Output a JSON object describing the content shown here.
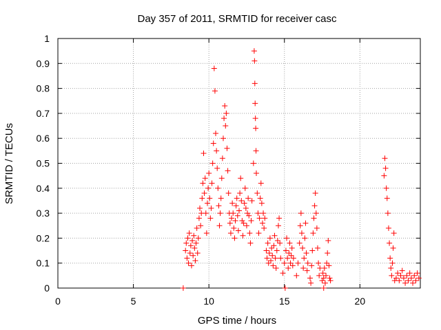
{
  "chart_data": {
    "type": "scatter",
    "title": "Day 357 of 2011, SRMTID for receiver casc",
    "xlabel": "GPS time / hours",
    "ylabel": "SRMTID / TECUs",
    "xlim": [
      0,
      24
    ],
    "ylim": [
      0,
      1
    ],
    "xticks": [
      0,
      5,
      10,
      15,
      20
    ],
    "xtick_labels": [
      "0",
      "5",
      "10",
      "15",
      "20"
    ],
    "yticks": [
      0,
      0.1,
      0.2,
      0.3,
      0.4,
      0.5,
      0.6,
      0.7,
      0.8,
      0.9,
      1
    ],
    "ytick_labels": [
      "0",
      "0.1",
      "0.2",
      "0.3",
      "0.4",
      "0.5",
      "0.6",
      "0.7",
      "0.8",
      "0.9",
      "1"
    ],
    "grid": true,
    "marker": "plus",
    "color": "#ff0000",
    "series": [
      {
        "name": "SRMTID",
        "points": [
          [
            8.3,
            0.0
          ],
          [
            15.05,
            0.0
          ],
          [
            17.6,
            0.0
          ],
          [
            8.45,
            0.15
          ],
          [
            8.5,
            0.18
          ],
          [
            8.55,
            0.12
          ],
          [
            8.6,
            0.2
          ],
          [
            8.65,
            0.1
          ],
          [
            8.7,
            0.22
          ],
          [
            8.75,
            0.14
          ],
          [
            8.8,
            0.17
          ],
          [
            8.85,
            0.09
          ],
          [
            8.9,
            0.19
          ],
          [
            8.95,
            0.13
          ],
          [
            9.0,
            0.21
          ],
          [
            9.05,
            0.16
          ],
          [
            9.1,
            0.11
          ],
          [
            9.15,
            0.18
          ],
          [
            9.2,
            0.24
          ],
          [
            9.25,
            0.14
          ],
          [
            9.3,
            0.2
          ],
          [
            9.35,
            0.28
          ],
          [
            9.4,
            0.32
          ],
          [
            9.45,
            0.25
          ],
          [
            9.5,
            0.3
          ],
          [
            9.55,
            0.36
          ],
          [
            9.6,
            0.42
          ],
          [
            9.65,
            0.54
          ],
          [
            9.7,
            0.38
          ],
          [
            9.75,
            0.44
          ],
          [
            9.8,
            0.3
          ],
          [
            9.85,
            0.22
          ],
          [
            9.9,
            0.34
          ],
          [
            9.95,
            0.4
          ],
          [
            10.0,
            0.46
          ],
          [
            10.05,
            0.36
          ],
          [
            10.1,
            0.28
          ],
          [
            10.15,
            0.32
          ],
          [
            10.2,
            0.42
          ],
          [
            10.25,
            0.5
          ],
          [
            10.3,
            0.58
          ],
          [
            10.35,
            0.88
          ],
          [
            10.4,
            0.79
          ],
          [
            10.45,
            0.62
          ],
          [
            10.5,
            0.55
          ],
          [
            10.55,
            0.48
          ],
          [
            10.6,
            0.4
          ],
          [
            10.65,
            0.33
          ],
          [
            10.7,
            0.25
          ],
          [
            10.75,
            0.3
          ],
          [
            10.8,
            0.36
          ],
          [
            10.85,
            0.44
          ],
          [
            10.9,
            0.52
          ],
          [
            10.95,
            0.6
          ],
          [
            11.0,
            0.68
          ],
          [
            11.05,
            0.73
          ],
          [
            11.1,
            0.65
          ],
          [
            11.15,
            0.7
          ],
          [
            11.2,
            0.56
          ],
          [
            11.25,
            0.47
          ],
          [
            11.3,
            0.38
          ],
          [
            11.35,
            0.3
          ],
          [
            11.4,
            0.26
          ],
          [
            11.45,
            0.22
          ],
          [
            11.5,
            0.28
          ],
          [
            11.55,
            0.34
          ],
          [
            11.6,
            0.3
          ],
          [
            11.65,
            0.24
          ],
          [
            11.7,
            0.2
          ],
          [
            11.75,
            0.27
          ],
          [
            11.8,
            0.33
          ],
          [
            11.85,
            0.36
          ],
          [
            11.9,
            0.29
          ],
          [
            11.95,
            0.23
          ],
          [
            12.0,
            0.31
          ],
          [
            12.05,
            0.38
          ],
          [
            12.1,
            0.44
          ],
          [
            12.15,
            0.35
          ],
          [
            12.2,
            0.27
          ],
          [
            12.25,
            0.21
          ],
          [
            12.3,
            0.26
          ],
          [
            12.35,
            0.34
          ],
          [
            12.4,
            0.4
          ],
          [
            12.45,
            0.32
          ],
          [
            12.5,
            0.25
          ],
          [
            12.55,
            0.3
          ],
          [
            12.6,
            0.36
          ],
          [
            12.65,
            0.29
          ],
          [
            12.7,
            0.22
          ],
          [
            12.75,
            0.18
          ],
          [
            12.8,
            0.27
          ],
          [
            12.85,
            0.35
          ],
          [
            12.95,
            0.5
          ],
          [
            13.0,
            0.95
          ],
          [
            13.02,
            0.91
          ],
          [
            13.04,
            0.82
          ],
          [
            13.06,
            0.74
          ],
          [
            13.08,
            0.68
          ],
          [
            13.1,
            0.64
          ],
          [
            13.12,
            0.55
          ],
          [
            13.14,
            0.46
          ],
          [
            13.2,
            0.38
          ],
          [
            13.25,
            0.3
          ],
          [
            13.3,
            0.22
          ],
          [
            13.35,
            0.28
          ],
          [
            13.4,
            0.36
          ],
          [
            13.45,
            0.42
          ],
          [
            13.5,
            0.34
          ],
          [
            13.55,
            0.26
          ],
          [
            13.6,
            0.3
          ],
          [
            13.65,
            0.24
          ],
          [
            13.7,
            0.28
          ],
          [
            13.8,
            0.15
          ],
          [
            13.85,
            0.12
          ],
          [
            13.9,
            0.18
          ],
          [
            13.95,
            0.1
          ],
          [
            14.0,
            0.14
          ],
          [
            14.05,
            0.2
          ],
          [
            14.1,
            0.11
          ],
          [
            14.15,
            0.16
          ],
          [
            14.2,
            0.13
          ],
          [
            14.25,
            0.09
          ],
          [
            14.3,
            0.17
          ],
          [
            14.35,
            0.21
          ],
          [
            14.4,
            0.12
          ],
          [
            14.45,
            0.08
          ],
          [
            14.5,
            0.15
          ],
          [
            14.55,
            0.19
          ],
          [
            14.6,
            0.25
          ],
          [
            14.65,
            0.28
          ],
          [
            14.7,
            0.18
          ],
          [
            14.75,
            0.12
          ],
          [
            14.9,
            0.06
          ],
          [
            15.0,
            0.1
          ],
          [
            15.1,
            0.15
          ],
          [
            15.15,
            0.2
          ],
          [
            15.2,
            0.12
          ],
          [
            15.25,
            0.08
          ],
          [
            15.3,
            0.14
          ],
          [
            15.35,
            0.18
          ],
          [
            15.4,
            0.1
          ],
          [
            15.45,
            0.13
          ],
          [
            15.5,
            0.16
          ],
          [
            15.55,
            0.09
          ],
          [
            15.6,
            0.12
          ],
          [
            15.8,
            0.05
          ],
          [
            15.9,
            0.1
          ],
          [
            16.0,
            0.18
          ],
          [
            16.05,
            0.25
          ],
          [
            16.1,
            0.3
          ],
          [
            16.15,
            0.22
          ],
          [
            16.2,
            0.16
          ],
          [
            16.25,
            0.08
          ],
          [
            16.3,
            0.12
          ],
          [
            16.35,
            0.2
          ],
          [
            16.4,
            0.26
          ],
          [
            16.45,
            0.14
          ],
          [
            16.5,
            0.07
          ],
          [
            16.55,
            0.1
          ],
          [
            16.7,
            0.04
          ],
          [
            16.75,
            0.02
          ],
          [
            16.8,
            0.09
          ],
          [
            16.85,
            0.15
          ],
          [
            16.9,
            0.22
          ],
          [
            16.95,
            0.28
          ],
          [
            17.0,
            0.33
          ],
          [
            17.05,
            0.38
          ],
          [
            17.1,
            0.3
          ],
          [
            17.15,
            0.24
          ],
          [
            17.2,
            0.16
          ],
          [
            17.25,
            0.1
          ],
          [
            17.3,
            0.05
          ],
          [
            17.35,
            0.08
          ],
          [
            17.5,
            0.03
          ],
          [
            17.55,
            0.06
          ],
          [
            17.6,
            0.04
          ],
          [
            17.65,
            0.08
          ],
          [
            17.7,
            0.02
          ],
          [
            17.75,
            0.05
          ],
          [
            17.8,
            0.1
          ],
          [
            17.85,
            0.14
          ],
          [
            17.9,
            0.19
          ],
          [
            17.95,
            0.09
          ],
          [
            18.0,
            0.04
          ],
          [
            18.05,
            0.03
          ],
          [
            21.6,
            0.45
          ],
          [
            21.65,
            0.52
          ],
          [
            21.7,
            0.48
          ],
          [
            21.75,
            0.4
          ],
          [
            21.8,
            0.36
          ],
          [
            21.85,
            0.3
          ],
          [
            21.9,
            0.24
          ],
          [
            21.95,
            0.18
          ],
          [
            22.0,
            0.12
          ],
          [
            22.05,
            0.08
          ],
          [
            22.1,
            0.05
          ],
          [
            22.15,
            0.1
          ],
          [
            22.2,
            0.16
          ],
          [
            22.25,
            0.22
          ],
          [
            22.3,
            0.03
          ],
          [
            22.4,
            0.04
          ],
          [
            22.5,
            0.06
          ],
          [
            22.6,
            0.03
          ],
          [
            22.7,
            0.05
          ],
          [
            22.8,
            0.07
          ],
          [
            22.9,
            0.04
          ],
          [
            23.0,
            0.02
          ],
          [
            23.1,
            0.05
          ],
          [
            23.2,
            0.03
          ],
          [
            23.3,
            0.06
          ],
          [
            23.4,
            0.04
          ],
          [
            23.5,
            0.02
          ],
          [
            23.6,
            0.05
          ],
          [
            23.7,
            0.03
          ],
          [
            23.8,
            0.06
          ],
          [
            23.9,
            0.04
          ]
        ]
      }
    ]
  }
}
